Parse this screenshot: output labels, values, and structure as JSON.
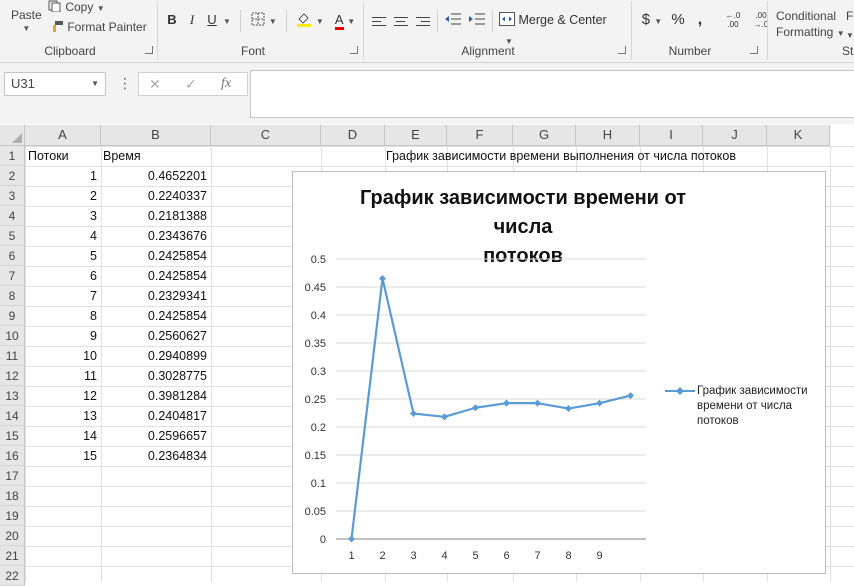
{
  "ribbon": {
    "clipboard": {
      "paste": "Paste",
      "copy": "Copy",
      "format_painter": "Format Painter",
      "label": "Clipboard"
    },
    "font": {
      "label": "Font",
      "bold": "B",
      "italic": "I",
      "underline": "U",
      "font_color_glyph": "A"
    },
    "alignment": {
      "label": "Alignment",
      "merge_center": "Merge & Center"
    },
    "number": {
      "label": "Number",
      "currency": "$",
      "percent": "%",
      "comma": ",",
      "inc_decimal_top": "←.0",
      "inc_decimal_bottom": ".00",
      "dec_decimal_top": ".00",
      "dec_decimal_bottom": "→.0"
    },
    "styles": {
      "conditional": "Conditional",
      "formatting": "Formatting",
      "format_as_table": "F",
      "label": "St"
    }
  },
  "formula_bar": {
    "name_box": "U31",
    "cancel": "✕",
    "enter": "✓",
    "fx": "fx",
    "value": ""
  },
  "columns": [
    "A",
    "B",
    "C",
    "D",
    "E",
    "F",
    "G",
    "H",
    "I",
    "J",
    "K"
  ],
  "rows": [
    "1",
    "2",
    "3",
    "4",
    "5",
    "6",
    "7",
    "8",
    "9",
    "10",
    "11",
    "12",
    "13",
    "14",
    "15",
    "16",
    "17",
    "18",
    "19",
    "20",
    "21",
    "22"
  ],
  "sheet": {
    "a1": "Потоки",
    "b1": "Время",
    "d1": "График зависимости времени выполнения от числа потоков",
    "threads": [
      "1",
      "2",
      "3",
      "4",
      "5",
      "6",
      "7",
      "8",
      "9",
      "10",
      "11",
      "12",
      "13",
      "14",
      "15"
    ],
    "times": [
      "0.4652201",
      "0.2240337",
      "0.2181388",
      "0.2343676",
      "0.2425854",
      "0.2425854",
      "0.2329341",
      "0.2425854",
      "0.2560627",
      "0.2940899",
      "0.3028775",
      "0.3981284",
      "0.2404817",
      "0.2596657",
      "0.2364834"
    ]
  },
  "chart_data": {
    "type": "line",
    "title": "График зависимости времени от числа потоков",
    "title_lines": [
      "График зависимости времени от числа",
      "потоков"
    ],
    "x": [
      1,
      2,
      3,
      4,
      5,
      6,
      7,
      8,
      9,
      10
    ],
    "x_tick_labels": [
      "1",
      "2",
      "3",
      "4",
      "5",
      "6",
      "7",
      "8",
      "9"
    ],
    "y_ticks": [
      "0",
      "0.05",
      "0.1",
      "0.15",
      "0.2",
      "0.25",
      "0.3",
      "0.35",
      "0.4",
      "0.45",
      "0.5"
    ],
    "ylim": [
      0,
      0.5
    ],
    "grid": true,
    "legend_position": "right",
    "series": [
      {
        "name": "График зависимости времени от числа потоков",
        "legend_lines": [
          "График зависимости",
          "времени от числа",
          "потоков"
        ],
        "color": "#5b9bd5",
        "values": [
          0,
          0.4652201,
          0.2240337,
          0.2181388,
          0.2343676,
          0.2425854,
          0.2425854,
          0.2329341,
          0.2425854,
          0.2560627
        ]
      }
    ]
  },
  "colors": {
    "accent": "#5b9bd5",
    "ribbon_bg": "#f3f3f3",
    "header_bg": "#e6e6e6",
    "gridline": "#e1e1e1"
  }
}
